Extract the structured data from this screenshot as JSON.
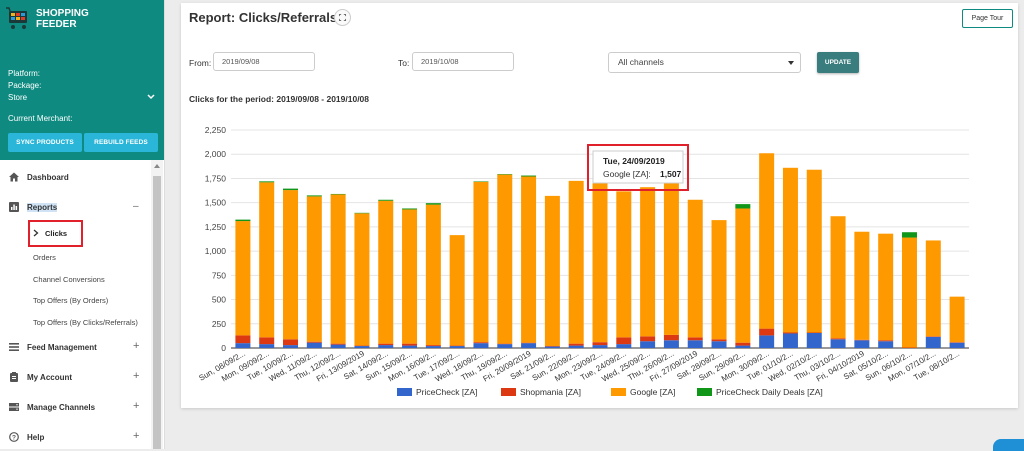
{
  "logo": {
    "line1": "SHOPPING",
    "line2": "FEEDER"
  },
  "merchant_info": {
    "platform": "Platform:",
    "package": "Package:",
    "store": "Store",
    "current_merchant": "Current Merchant:"
  },
  "sidebar_buttons": {
    "sync": "SYNC PRODUCTS",
    "rebuild": "REBUILD FEEDS"
  },
  "nav": {
    "dashboard": "Dashboard",
    "reports": "Reports",
    "reports_toggle": "–",
    "sub_items": [
      "Clicks",
      "Orders",
      "Channel Conversions",
      "Top Offers (By Orders)",
      "Top Offers (By Clicks/Referrals)"
    ],
    "feed_management": "Feed Management",
    "my_account": "My Account",
    "manage_channels": "Manage Channels",
    "help": "Help",
    "plus": "+"
  },
  "header": {
    "title": "Report: Clicks/Referrals",
    "page_tour": "Page Tour"
  },
  "filters": {
    "from_label": "From:",
    "from_value": "2019/09/08",
    "to_label": "To:",
    "to_value": "2019/10/08",
    "channel_value": "All channels",
    "update_label": "UPDATE"
  },
  "period_text": "Clicks for the period: 2019/09/08 - 2019/10/08",
  "colors": {
    "pricecheck": "#3366cc",
    "shopmania": "#dc3912",
    "google": "#ff9900",
    "daily_deals": "#109618",
    "teal": "#0f8a80"
  },
  "chart_data": {
    "type": "bar",
    "stacked": true,
    "categories": [
      "Sun, 08/09/2...",
      "Mon, 09/09/2...",
      "Tue, 10/09/2...",
      "Wed, 11/09/2...",
      "Thu, 12/09/2...",
      "Fri, 13/09/2019",
      "Sat, 14/09/2...",
      "Sun, 15/09/2...",
      "Mon, 16/09/2...",
      "Tue, 17/09/2...",
      "Wed, 18/09/2...",
      "Thu, 19/09/2...",
      "Fri, 20/09/2019",
      "Sat, 21/09/2...",
      "Sun, 22/09/2...",
      "Mon, 23/09/2...",
      "Tue, 24/09/2...",
      "Wed, 25/09/2...",
      "Thu, 26/09/2...",
      "Fri, 27/09/2019",
      "Sat, 28/09/2...",
      "Sun, 29/09/2...",
      "Mon, 30/09/2...",
      "Tue, 01/10/2...",
      "Wed, 02/10/2...",
      "Thu, 03/10/2...",
      "Fri, 04/10/2019",
      "Sat, 05/10/2...",
      "Sun, 06/10/2...",
      "Mon, 07/10/2...",
      "Tue, 08/10/2..."
    ],
    "series": [
      {
        "name": "PriceCheck [ZA]",
        "color": "#3366cc",
        "values": [
          50,
          40,
          30,
          55,
          35,
          20,
          30,
          25,
          20,
          20,
          50,
          40,
          50,
          15,
          25,
          30,
          40,
          70,
          80,
          80,
          70,
          25,
          130,
          150,
          155,
          90,
          80,
          70,
          0,
          115,
          55
        ]
      },
      {
        "name": "Shopmania [ZA]",
        "color": "#dc3912",
        "values": [
          80,
          70,
          60,
          10,
          10,
          5,
          15,
          20,
          10,
          5,
          10,
          5,
          5,
          5,
          20,
          30,
          70,
          50,
          55,
          30,
          20,
          30,
          70,
          10,
          5,
          10,
          5,
          10,
          5,
          5,
          5
        ]
      },
      {
        "name": "Google [ZA]",
        "color": "#ff9900",
        "values": [
          1180,
          1600,
          1540,
          1500,
          1540,
          1365,
          1475,
          1385,
          1450,
          1140,
          1655,
          1745,
          1715,
          1550,
          1680,
          1840,
          1507,
          1540,
          1580,
          1420,
          1230,
          1385,
          1810,
          1700,
          1680,
          1260,
          1115,
          1100,
          1135,
          990,
          470
        ]
      },
      {
        "name": "PriceCheck Daily Deals [ZA]",
        "color": "#109618",
        "values": [
          15,
          10,
          15,
          10,
          5,
          5,
          10,
          10,
          15,
          0,
          5,
          5,
          10,
          0,
          0,
          0,
          0,
          0,
          0,
          0,
          0,
          45,
          0,
          0,
          0,
          0,
          0,
          0,
          55,
          0,
          0
        ]
      }
    ],
    "y_ticks": [
      "0",
      "250",
      "500",
      "750",
      "1,000",
      "1,250",
      "1,500",
      "1,750",
      "2,000",
      "2,250"
    ],
    "ylim": [
      0,
      2250
    ],
    "grid": true,
    "legend_position": "bottom",
    "tooltip": {
      "index": 16,
      "title": "Tue, 24/09/2019",
      "series": "Google [ZA]:",
      "value": "1,507"
    }
  }
}
